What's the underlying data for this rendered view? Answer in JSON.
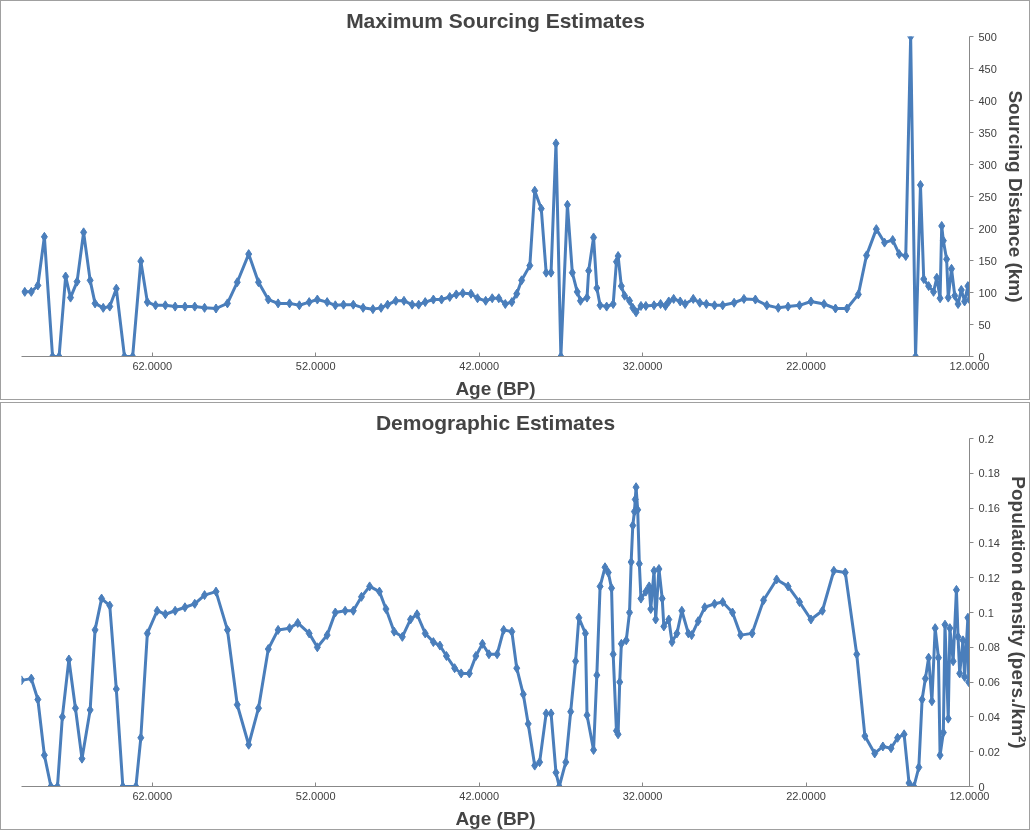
{
  "chart_data": [
    {
      "type": "line",
      "title": "Maximum Sourcing Estimates",
      "xlabel": "Age (BP)",
      "ylabel": "Sourcing Distance (km)",
      "marker": "diamond",
      "line_style": "solid",
      "xlim": [
        70,
        12
      ],
      "xticks": [
        {
          "value": 62,
          "label": "62.0000"
        },
        {
          "value": 52,
          "label": "52.0000"
        },
        {
          "value": 42,
          "label": "42.0000"
        },
        {
          "value": 32,
          "label": "32.0000"
        },
        {
          "value": 22,
          "label": "22.0000"
        },
        {
          "value": 12,
          "label": "12.0000"
        }
      ],
      "ylim": [
        0,
        500
      ],
      "yticks": [
        0,
        50,
        100,
        150,
        200,
        250,
        300,
        350,
        400,
        450,
        500
      ],
      "series": [
        {
          "color": "#4a7ebb",
          "x": [
            69.8,
            69.4,
            69.0,
            68.6,
            68.1,
            67.7,
            67.3,
            67.0,
            66.6,
            66.2,
            65.8,
            65.5,
            65.0,
            64.6,
            64.2,
            63.7,
            63.2,
            62.7,
            62.3,
            61.8,
            61.2,
            60.6,
            60.0,
            59.4,
            58.8,
            58.1,
            57.4,
            56.8,
            56.1,
            55.5,
            54.9,
            54.3,
            53.6,
            53.0,
            52.4,
            51.9,
            51.3,
            50.8,
            50.3,
            49.7,
            49.1,
            48.5,
            48.0,
            47.6,
            47.1,
            46.6,
            46.1,
            45.7,
            45.3,
            44.8,
            44.3,
            43.8,
            43.4,
            43.0,
            42.5,
            42.1,
            41.6,
            41.2,
            40.8,
            40.4,
            40.0,
            39.7,
            39.4,
            38.9,
            38.6,
            38.2,
            37.9,
            37.6,
            37.3,
            37.0,
            36.6,
            36.3,
            36.0,
            35.8,
            35.4,
            35.3,
            35.0,
            34.8,
            34.6,
            34.2,
            33.8,
            33.6,
            33.5,
            33.3,
            33.1,
            32.8,
            32.6,
            32.4,
            32.1,
            31.8,
            31.3,
            30.9,
            30.6,
            30.4,
            30.1,
            29.7,
            29.4,
            28.9,
            28.5,
            28.1,
            27.6,
            27.1,
            26.4,
            25.8,
            25.1,
            24.4,
            23.7,
            23.1,
            22.4,
            21.7,
            20.9,
            20.2,
            19.5,
            18.8,
            18.3,
            17.7,
            17.2,
            16.7,
            16.3,
            15.9,
            15.6,
            15.3,
            15.0,
            14.8,
            14.5,
            14.2,
            14.0,
            13.8,
            13.7,
            13.6,
            13.4,
            13.3,
            13.1,
            12.9,
            12.7,
            12.5,
            12.3,
            12.1,
            12.0
          ],
          "values": [
            101,
            101,
            111,
            187,
            0,
            0,
            125,
            92,
            117,
            194,
            119,
            83,
            76,
            78,
            106,
            0,
            0,
            149,
            85,
            80,
            80,
            78,
            78,
            78,
            76,
            75,
            83,
            116,
            160,
            116,
            89,
            83,
            83,
            80,
            85,
            89,
            85,
            80,
            81,
            81,
            76,
            74,
            76,
            81,
            87,
            87,
            81,
            81,
            85,
            89,
            89,
            93,
            97,
            99,
            98,
            91,
            87,
            91,
            91,
            82,
            85,
            98,
            119,
            142,
            259,
            231,
            131,
            131,
            333,
            0,
            237,
            131,
            101,
            87,
            92,
            134,
            186,
            107,
            80,
            78,
            82,
            148,
            157,
            110,
            95,
            87,
            76,
            69,
            79,
            79,
            80,
            82,
            79,
            86,
            90,
            86,
            82,
            90,
            84,
            82,
            80,
            80,
            84,
            90,
            89,
            80,
            76,
            78,
            80,
            86,
            82,
            75,
            75,
            97,
            158,
            199,
            178,
            182,
            160,
            157,
            500,
            0,
            268,
            121,
            110,
            101,
            123,
            91,
            204,
            181,
            152,
            92,
            137,
            95,
            82,
            104,
            86,
            110,
            89
          ]
        }
      ]
    },
    {
      "type": "line",
      "title": "Demographic Estimates",
      "xlabel": "Age (BP)",
      "ylabel": "Population density (pers./km²)",
      "marker": "diamond",
      "line_style": "solid",
      "xlim": [
        70,
        12
      ],
      "xticks": [
        {
          "value": 62,
          "label": "62.0000"
        },
        {
          "value": 52,
          "label": "52.0000"
        },
        {
          "value": 42,
          "label": "42.0000"
        },
        {
          "value": 32,
          "label": "32.0000"
        },
        {
          "value": 22,
          "label": "22.0000"
        },
        {
          "value": 12,
          "label": "12.0000"
        }
      ],
      "ylim": [
        0,
        0.2
      ],
      "yticks": [
        0,
        0.02,
        0.04,
        0.06,
        0.08,
        0.1,
        0.12,
        0.14,
        0.16,
        0.18,
        0.2
      ],
      "series": [
        {
          "color": "#4a7ebb",
          "x": [
            70.0,
            69.4,
            69.0,
            68.6,
            68.2,
            67.8,
            67.5,
            67.1,
            66.7,
            66.3,
            65.8,
            65.5,
            65.1,
            64.6,
            64.2,
            63.8,
            63.0,
            62.7,
            62.3,
            61.7,
            61.2,
            60.6,
            60.0,
            59.4,
            58.8,
            58.1,
            57.4,
            56.8,
            56.1,
            55.5,
            54.9,
            54.3,
            53.6,
            53.1,
            52.4,
            51.9,
            51.3,
            50.8,
            50.2,
            49.7,
            49.2,
            48.7,
            48.1,
            47.7,
            47.2,
            46.7,
            46.2,
            45.8,
            45.3,
            44.8,
            44.4,
            44.0,
            43.5,
            43.1,
            42.6,
            42.2,
            41.8,
            41.4,
            40.9,
            40.5,
            40.0,
            39.7,
            39.3,
            39.0,
            38.6,
            38.3,
            37.9,
            37.6,
            37.3,
            37.1,
            36.7,
            36.4,
            36.1,
            35.9,
            35.5,
            35.4,
            35.0,
            34.8,
            34.6,
            34.3,
            34.1,
            33.9,
            33.8,
            33.6,
            33.5,
            33.4,
            33.3,
            33.0,
            32.8,
            32.7,
            32.6,
            32.5,
            32.45,
            32.4,
            32.3,
            32.2,
            32.1,
            31.8,
            31.6,
            31.5,
            31.3,
            31.2,
            31.0,
            30.8,
            30.7,
            30.4,
            30.2,
            29.9,
            29.6,
            29.2,
            29.0,
            28.6,
            28.2,
            27.6,
            27.1,
            26.5,
            26.0,
            25.3,
            24.6,
            23.8,
            23.1,
            22.4,
            21.7,
            21.0,
            20.3,
            19.6,
            18.9,
            18.4,
            17.8,
            17.3,
            16.8,
            16.4,
            16.0,
            15.7,
            15.4,
            15.1,
            14.9,
            14.7,
            14.5,
            14.3,
            14.1,
            13.9,
            13.8,
            13.6,
            13.5,
            13.3,
            13.2,
            13.0,
            12.8,
            12.7,
            12.6,
            12.4,
            12.3,
            12.1,
            12.05
          ],
          "values": [
            0.061,
            0.062,
            0.05,
            0.018,
            0,
            0,
            0.04,
            0.073,
            0.045,
            0.016,
            0.044,
            0.09,
            0.108,
            0.104,
            0.056,
            0,
            0,
            0.028,
            0.088,
            0.101,
            0.099,
            0.101,
            0.103,
            0.105,
            0.11,
            0.112,
            0.09,
            0.047,
            0.024,
            0.045,
            0.079,
            0.09,
            0.091,
            0.094,
            0.088,
            0.08,
            0.087,
            0.1,
            0.101,
            0.101,
            0.109,
            0.115,
            0.112,
            0.102,
            0.089,
            0.086,
            0.096,
            0.099,
            0.088,
            0.083,
            0.081,
            0.075,
            0.068,
            0.065,
            0.065,
            0.075,
            0.082,
            0.076,
            0.076,
            0.09,
            0.089,
            0.068,
            0.053,
            0.036,
            0.012,
            0.014,
            0.042,
            0.042,
            0.008,
            0,
            0.014,
            0.043,
            0.072,
            0.097,
            0.088,
            0.041,
            0.021,
            0.064,
            0.115,
            0.126,
            0.123,
            0.114,
            0.076,
            0.032,
            0.03,
            0.06,
            0.082,
            0.084,
            0.1,
            0.129,
            0.15,
            0.158,
            0.165,
            0.172,
            0.159,
            0.128,
            0.108,
            0.112,
            0.115,
            0.102,
            0.124,
            0.096,
            0.125,
            0.108,
            0.092,
            0.096,
            0.083,
            0.088,
            0.101,
            0.088,
            0.087,
            0.095,
            0.103,
            0.105,
            0.106,
            0.1,
            0.087,
            0.088,
            0.107,
            0.119,
            0.115,
            0.106,
            0.096,
            0.101,
            0.124,
            0.123,
            0.076,
            0.029,
            0.019,
            0.023,
            0.022,
            0.028,
            0.03,
            0.002,
            0,
            0.011,
            0.05,
            0.062,
            0.074,
            0.049,
            0.091,
            0.074,
            0.018,
            0.031,
            0.093,
            0.039,
            0.091,
            0.072,
            0.113,
            0.086,
            0.065,
            0.084,
            0.063,
            0.097,
            0.06
          ]
        }
      ]
    }
  ]
}
